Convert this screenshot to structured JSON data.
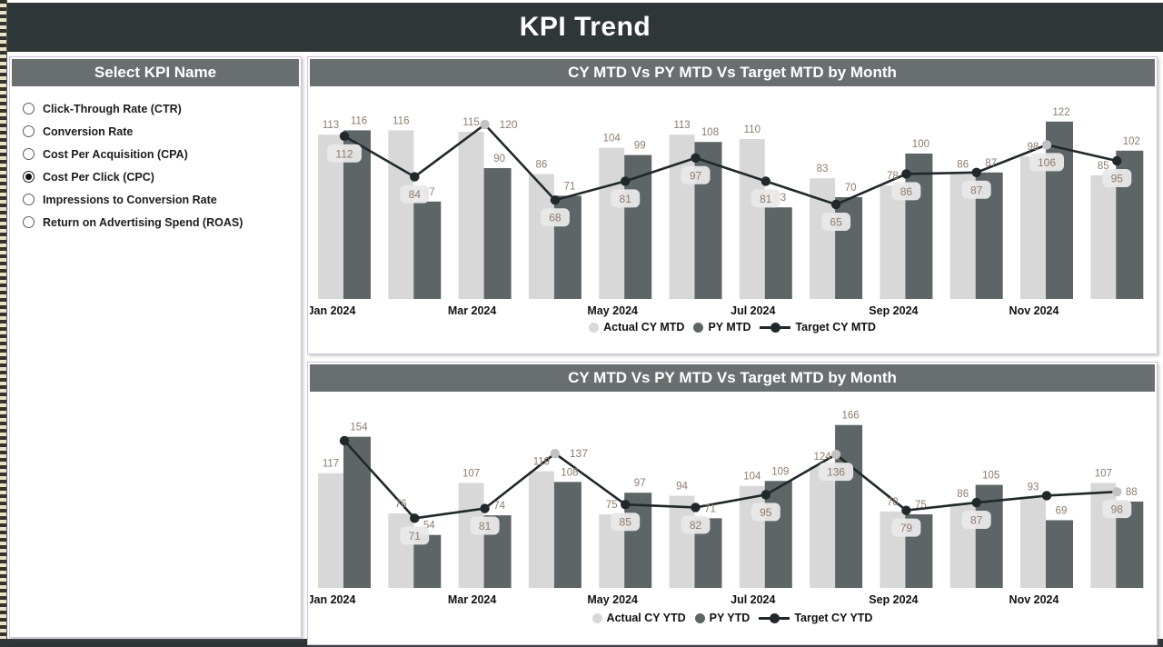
{
  "header": {
    "title": "KPI Trend"
  },
  "sidebar": {
    "title": "Select KPI Name",
    "options": [
      {
        "label": "Click-Through Rate (CTR)",
        "selected": false
      },
      {
        "label": "Conversion Rate",
        "selected": false
      },
      {
        "label": "Cost Per Acquisition (CPA)",
        "selected": false
      },
      {
        "label": "Cost Per Click (CPC)",
        "selected": true
      },
      {
        "label": "Impressions to Conversion Rate",
        "selected": false
      },
      {
        "label": "Return on Advertising Spend (ROAS)",
        "selected": false
      }
    ]
  },
  "colors": {
    "header_bg": "#2f3638",
    "band_bg": "#696e6f",
    "actual_bar": "#d8d8d8",
    "py_bar": "#5d6566",
    "target_line": "#20282a",
    "gray_marker": "#c2c2c2",
    "value_label": "#8d7b6c",
    "label_box_bg": "#e9e9e9",
    "panel_border": "#cfc3dd"
  },
  "chart_data": [
    {
      "type": "bar",
      "title": "CY MTD Vs PY MTD Vs Target MTD by Month",
      "categories": [
        "Jan 2024",
        "Feb 2024",
        "Mar 2024",
        "Apr 2024",
        "May 2024",
        "Jun 2024",
        "Jul 2024",
        "Aug 2024",
        "Sep 2024",
        "Oct 2024",
        "Nov 2024",
        "Dec 2024"
      ],
      "axis_label_indices": [
        0,
        2,
        4,
        6,
        8,
        10
      ],
      "ylim": [
        0,
        140
      ],
      "grid": false,
      "legend_position": "bottom",
      "series": [
        {
          "name": "Actual CY MTD",
          "kind": "bar",
          "values": [
            113,
            116,
            115,
            86,
            104,
            113,
            110,
            83,
            78,
            86,
            98,
            85
          ]
        },
        {
          "name": "PY MTD",
          "kind": "bar",
          "values": [
            116,
            67,
            90,
            71,
            99,
            108,
            63,
            70,
            100,
            87,
            122,
            102
          ]
        },
        {
          "name": "Target CY MTD",
          "kind": "line",
          "values": [
            112,
            84,
            120,
            68,
            81,
            97,
            81,
            65,
            86,
            87,
            106,
            95
          ],
          "label_styles": [
            "boxed",
            "boxed",
            "plain",
            "boxed",
            "boxed",
            "boxed",
            "boxed",
            "boxed",
            "boxed",
            "boxed",
            "boxed",
            "boxed"
          ],
          "gray_marker_indices": [
            2,
            10
          ]
        }
      ]
    },
    {
      "type": "bar",
      "title": "CY MTD Vs PY MTD Vs Target MTD by Month",
      "categories": [
        "Jan 2024",
        "Feb 2024",
        "Mar 2024",
        "Apr 2024",
        "May 2024",
        "Jun 2024",
        "Jul 2024",
        "Aug 2024",
        "Sep 2024",
        "Oct 2024",
        "Nov 2024",
        "Dec 2024"
      ],
      "axis_label_indices": [
        0,
        2,
        4,
        6,
        8,
        10
      ],
      "ylim": [
        0,
        180
      ],
      "grid": false,
      "legend_position": "bottom",
      "series": [
        {
          "name": "Actual CY YTD",
          "kind": "bar",
          "values": [
            117,
            76,
            107,
            119,
            75,
            94,
            104,
            124,
            78,
            86,
            93,
            107
          ]
        },
        {
          "name": "PY YTD",
          "kind": "bar",
          "values": [
            154,
            54,
            74,
            108,
            97,
            71,
            109,
            166,
            75,
            105,
            69,
            88
          ]
        },
        {
          "name": "Target CY YTD",
          "kind": "line",
          "values": [
            150,
            71,
            81,
            137,
            85,
            82,
            95,
            136,
            79,
            87,
            94,
            98
          ],
          "label_styles": [
            "hidden",
            "boxed",
            "boxed",
            "plain",
            "boxed",
            "boxed",
            "boxed",
            "boxed",
            "boxed",
            "boxed",
            "hidden",
            "boxed"
          ],
          "gray_marker_indices": [
            3,
            7,
            11
          ]
        }
      ]
    }
  ]
}
